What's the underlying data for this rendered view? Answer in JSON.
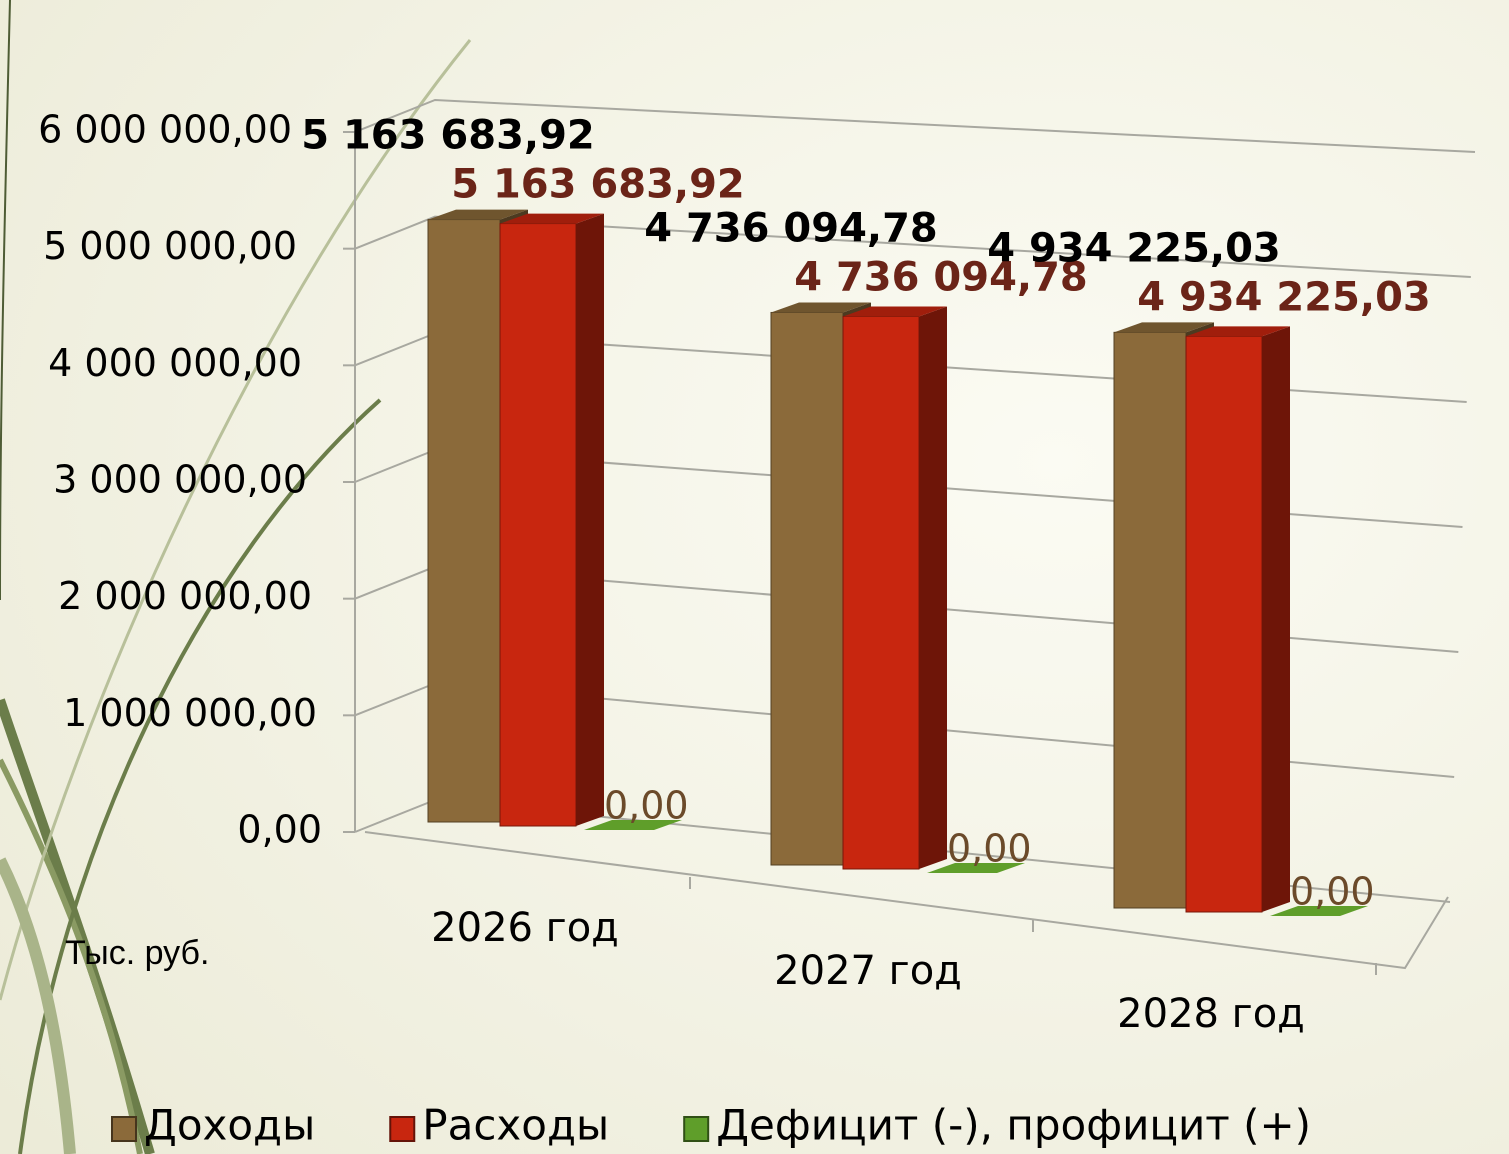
{
  "chart_data": {
    "type": "bar3d",
    "axis_label": "Тыс. руб.",
    "categories": [
      "2026 год",
      "2027 год",
      "2028 год"
    ],
    "series": [
      {
        "name": "Доходы",
        "color": "#8b6a3a",
        "values": [
          5163683.92,
          4736094.78,
          4934225.03
        ],
        "value_labels": [
          "5 163 683,92",
          "4 736 094,78",
          "4 934 225,03"
        ],
        "label_color": "#000000"
      },
      {
        "name": "Расходы",
        "color": "#c8260f",
        "values": [
          5163683.92,
          4736094.78,
          4934225.03
        ],
        "value_labels": [
          "5 163 683,92",
          "4 736 094,78",
          "4 934 225,03"
        ],
        "label_color": "#6b2418"
      },
      {
        "name": "Дефицит (-), профицит (+)",
        "color": "#5f9e2a",
        "values": [
          0,
          0,
          0
        ],
        "value_labels": [
          "0,00",
          "0,00",
          "0,00"
        ],
        "label_color": "#6b4a2a"
      }
    ],
    "ylim": [
      0,
      6000000
    ],
    "yticks": [
      {
        "value": 0,
        "label": "0,00"
      },
      {
        "value": 1000000,
        "label": "1 000 000,00"
      },
      {
        "value": 2000000,
        "label": "2 000 000,00"
      },
      {
        "value": 3000000,
        "label": "3 000 000,00"
      },
      {
        "value": 4000000,
        "label": "4 000 000,00"
      },
      {
        "value": 5000000,
        "label": "5 000 000,00"
      },
      {
        "value": 6000000,
        "label": "6 000 000,00"
      }
    ],
    "grid": true,
    "legend": "bottom"
  }
}
